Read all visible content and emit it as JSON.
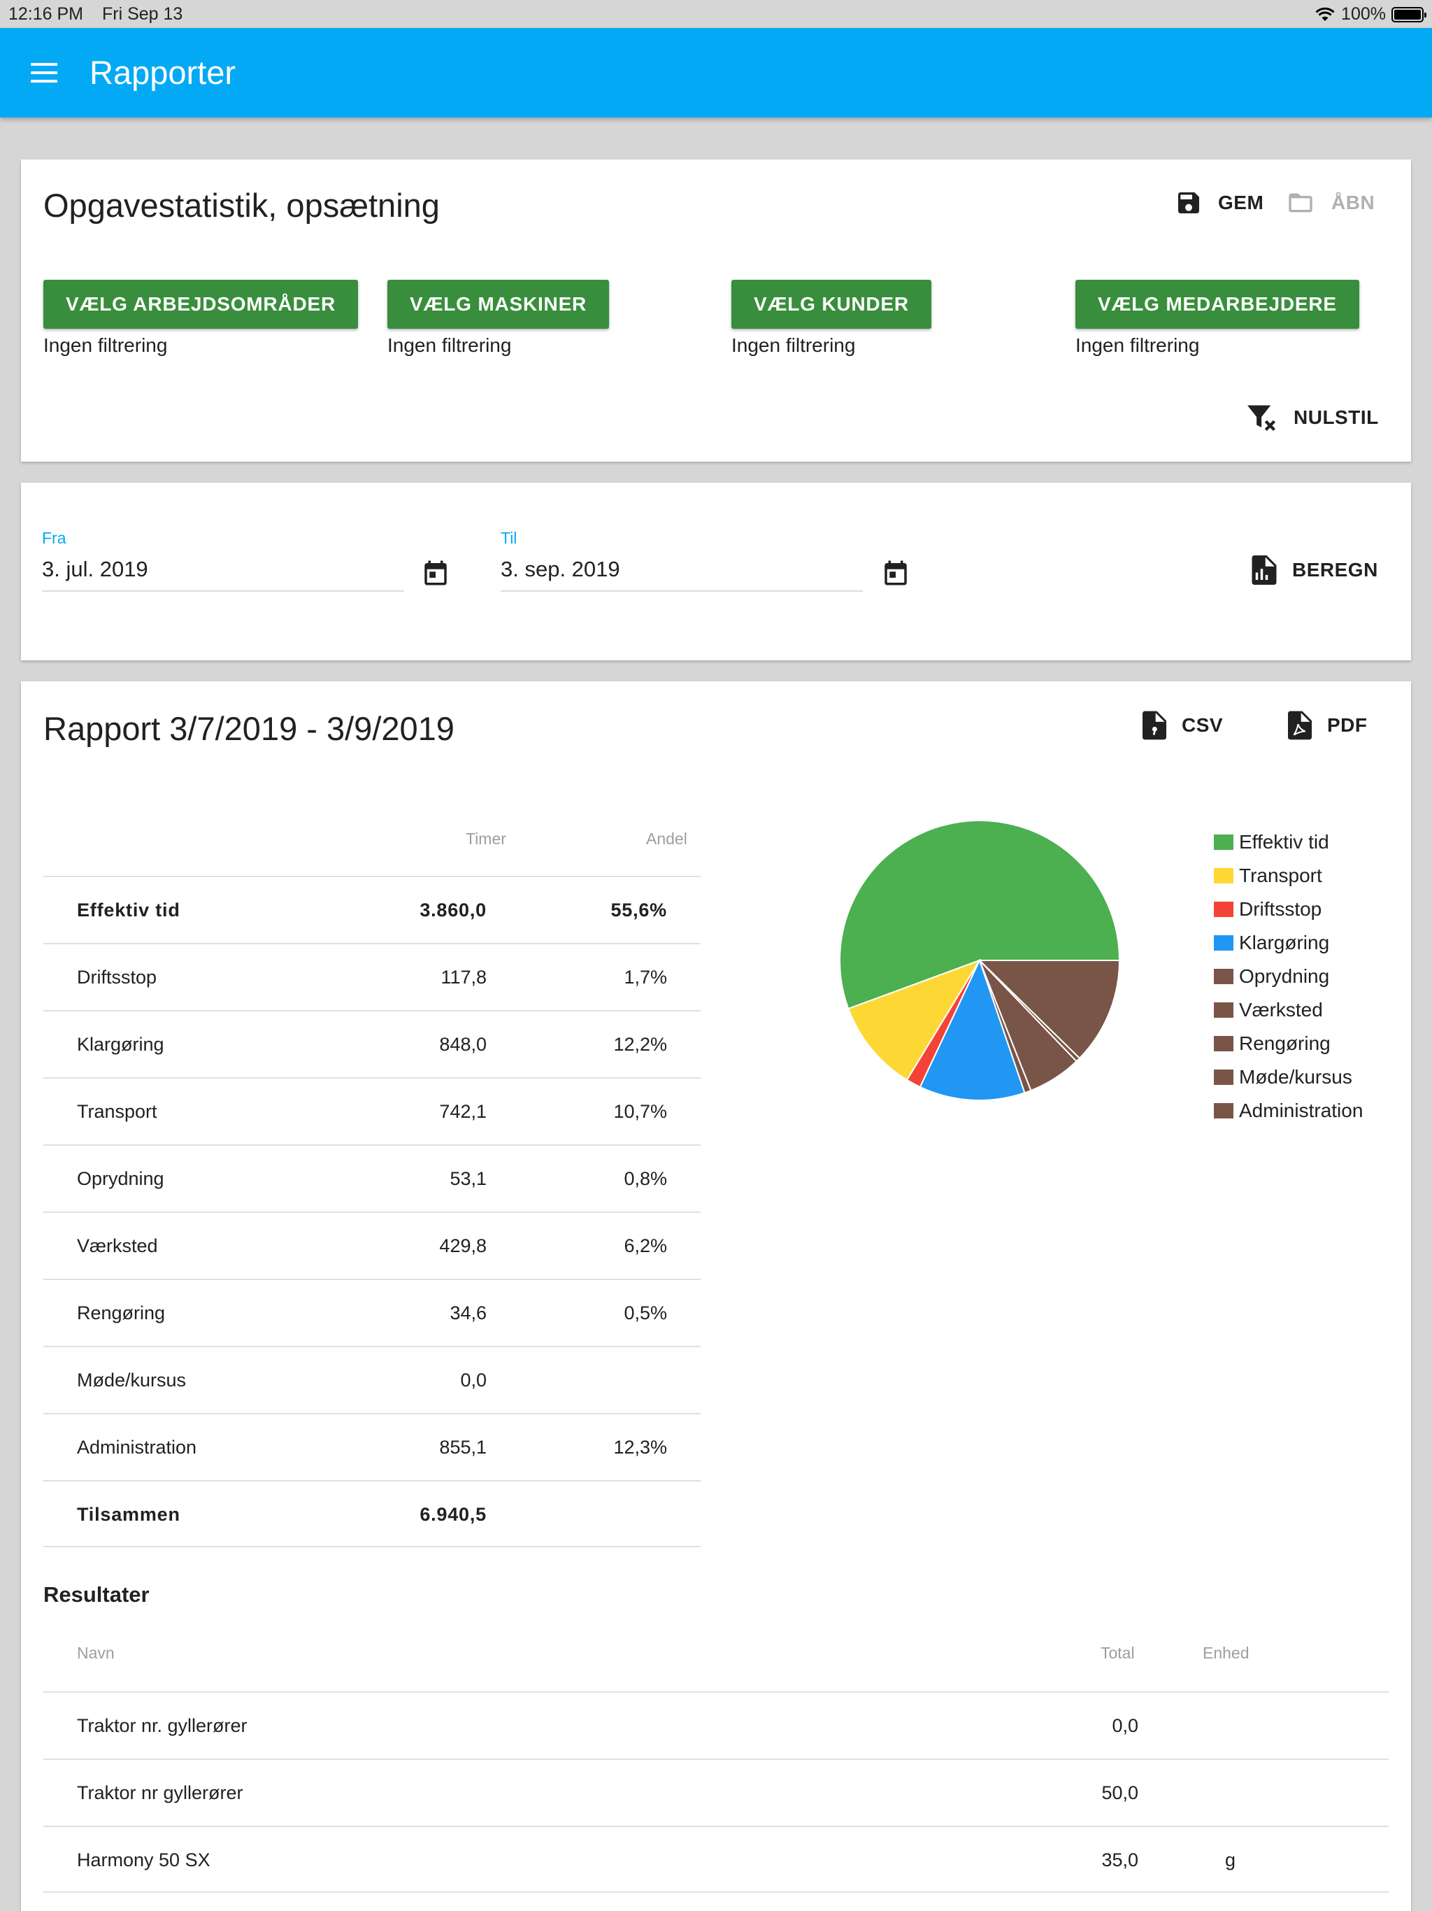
{
  "status_bar": {
    "time": "12:16 PM",
    "date": "Fri Sep 13",
    "battery": "100%"
  },
  "app_bar": {
    "title": "Rapporter"
  },
  "setup": {
    "title": "Opgavestatistik, opsætning",
    "save_label": "GEM",
    "open_label": "ÅBN",
    "filters": [
      {
        "label": "VÆLG ARBEJDSOMRÅDER",
        "status": "Ingen filtrering"
      },
      {
        "label": "VÆLG MASKINER",
        "status": "Ingen filtrering"
      },
      {
        "label": "VÆLG KUNDER",
        "status": "Ingen filtrering"
      },
      {
        "label": "VÆLG MEDARBEJDERE",
        "status": "Ingen filtrering"
      }
    ],
    "reset_label": "NULSTIL"
  },
  "dates": {
    "from_label": "Fra",
    "from_value": "3. jul. 2019",
    "to_label": "Til",
    "to_value": "3. sep. 2019",
    "calc_label": "BEREGN"
  },
  "report": {
    "title": "Rapport 3/7/2019 - 3/9/2019",
    "csv_label": "CSV",
    "pdf_label": "PDF",
    "col_hours": "Timer",
    "col_share": "Andel",
    "rows": [
      {
        "name": "Effektiv tid",
        "hours": "3.860,0",
        "share": "55,6%"
      },
      {
        "name": "Driftsstop",
        "hours": "117,8",
        "share": "1,7%"
      },
      {
        "name": "Klargøring",
        "hours": "848,0",
        "share": "12,2%"
      },
      {
        "name": "Transport",
        "hours": "742,1",
        "share": "10,7%"
      },
      {
        "name": "Oprydning",
        "hours": "53,1",
        "share": "0,8%"
      },
      {
        "name": "Værksted",
        "hours": "429,8",
        "share": "6,2%"
      },
      {
        "name": "Rengøring",
        "hours": "34,6",
        "share": "0,5%"
      },
      {
        "name": "Møde/kursus",
        "hours": "0,0",
        "share": ""
      },
      {
        "name": "Administration",
        "hours": "855,1",
        "share": "12,3%"
      },
      {
        "name": "Tilsammen",
        "hours": "6.940,5",
        "share": ""
      }
    ]
  },
  "chart_data": {
    "type": "pie",
    "slices": [
      {
        "label": "Effektiv tid",
        "value": 3860.0,
        "color": "#4caf50"
      },
      {
        "label": "Transport",
        "value": 742.1,
        "color": "#fdd835"
      },
      {
        "label": "Driftsstop",
        "value": 117.8,
        "color": "#f44336"
      },
      {
        "label": "Klargøring",
        "value": 848.0,
        "color": "#2196f3"
      },
      {
        "label": "Oprydning",
        "value": 53.1,
        "color": "#795548"
      },
      {
        "label": "Værksted",
        "value": 429.8,
        "color": "#795548"
      },
      {
        "label": "Rengøring",
        "value": 34.6,
        "color": "#795548"
      },
      {
        "label": "Møde/kursus",
        "value": 0.0,
        "color": "#795548"
      },
      {
        "label": "Administration",
        "value": 855.1,
        "color": "#795548"
      }
    ],
    "legend_position": "right"
  },
  "results": {
    "title": "Resultater",
    "col_name": "Navn",
    "col_total": "Total",
    "col_unit": "Enhed",
    "rows": [
      {
        "name": "Traktor nr. gyllerører",
        "total": "0,0",
        "unit": ""
      },
      {
        "name": "Traktor nr gyllerører",
        "total": "50,0",
        "unit": ""
      },
      {
        "name": "Harmony 50 SX",
        "total": "35,0",
        "unit": "g"
      }
    ]
  }
}
